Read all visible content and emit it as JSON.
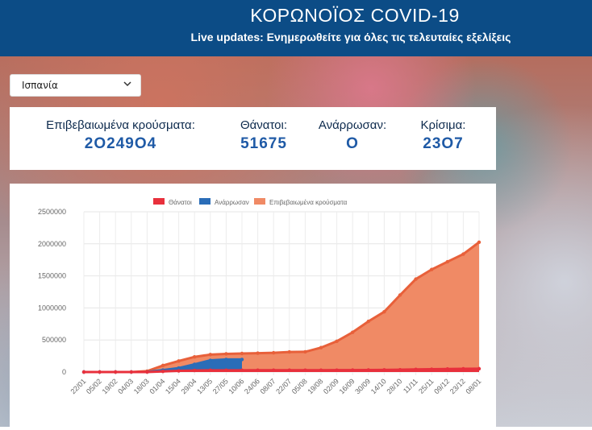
{
  "header": {
    "title": "ΚΟΡΩΝΟΪΟΣ COVID-19",
    "subtitle": "Live updates: Ενημερωθείτε για όλες τις τελευταίες εξελίξεις"
  },
  "country_select": {
    "selected": "Ισπανία"
  },
  "stats": {
    "confirmed_label": "Επιβεβαιωμένα κρούσματα:",
    "confirmed_value": "2Ο249Ο4",
    "deaths_label": "Θάνατοι:",
    "deaths_value": "51675",
    "recovered_label": "Ανάρρωσαν:",
    "recovered_value": "Ο",
    "critical_label": "Κρίσιμα:",
    "critical_value": "23Ο7"
  },
  "colors": {
    "header_bg": "#0c4c86",
    "deaths": "#e8303c",
    "recovered": "#2a6db8",
    "confirmed": "#f08a65",
    "confirmed_line": "#e8603a"
  },
  "chart_data": {
    "type": "area",
    "title": "",
    "legend": [
      "Θάνατοι",
      "Ανάρρωσαν",
      "Επιβεβαιωμένα κρούσματα"
    ],
    "legend_position": "top",
    "ylim": [
      0,
      2500000
    ],
    "yticks": [
      0,
      500000,
      1000000,
      1500000,
      2000000,
      2500000
    ],
    "xlabels": [
      "22/01",
      "05/02",
      "19/02",
      "04/03",
      "18/03",
      "01/04",
      "15/04",
      "29/04",
      "13/05",
      "27/05",
      "10/06",
      "24/06",
      "08/07",
      "22/07",
      "05/08",
      "19/08",
      "02/09",
      "16/09",
      "30/09",
      "14/10",
      "28/10",
      "11/11",
      "25/11",
      "09/12",
      "23/12",
      "08/01"
    ],
    "series": [
      {
        "name": "Επιβεβαιωμένα κρούσματα",
        "values": [
          0,
          2,
          2,
          200,
          13700,
          102000,
          172000,
          236000,
          272000,
          283000,
          289000,
          294000,
          300000,
          313000,
          315000,
          380000,
          480000,
          620000,
          790000,
          940000,
          1200000,
          1450000,
          1600000,
          1720000,
          1840000,
          2024904
        ]
      },
      {
        "name": "Ανάρρωσαν",
        "values": [
          0,
          0,
          0,
          0,
          1100,
          30000,
          62000,
          120000,
          182000,
          196000,
          196000,
          null,
          null,
          null,
          null,
          null,
          null,
          null,
          null,
          null,
          null,
          null,
          null,
          null,
          null,
          null
        ]
      },
      {
        "name": "Θάνατοι",
        "values": [
          0,
          0,
          0,
          0,
          600,
          9400,
          18600,
          24300,
          27300,
          27100,
          27100,
          28300,
          28400,
          28400,
          28500,
          28800,
          29200,
          30200,
          32000,
          33500,
          35900,
          40800,
          43700,
          47000,
          50100,
          51675
        ]
      }
    ]
  }
}
